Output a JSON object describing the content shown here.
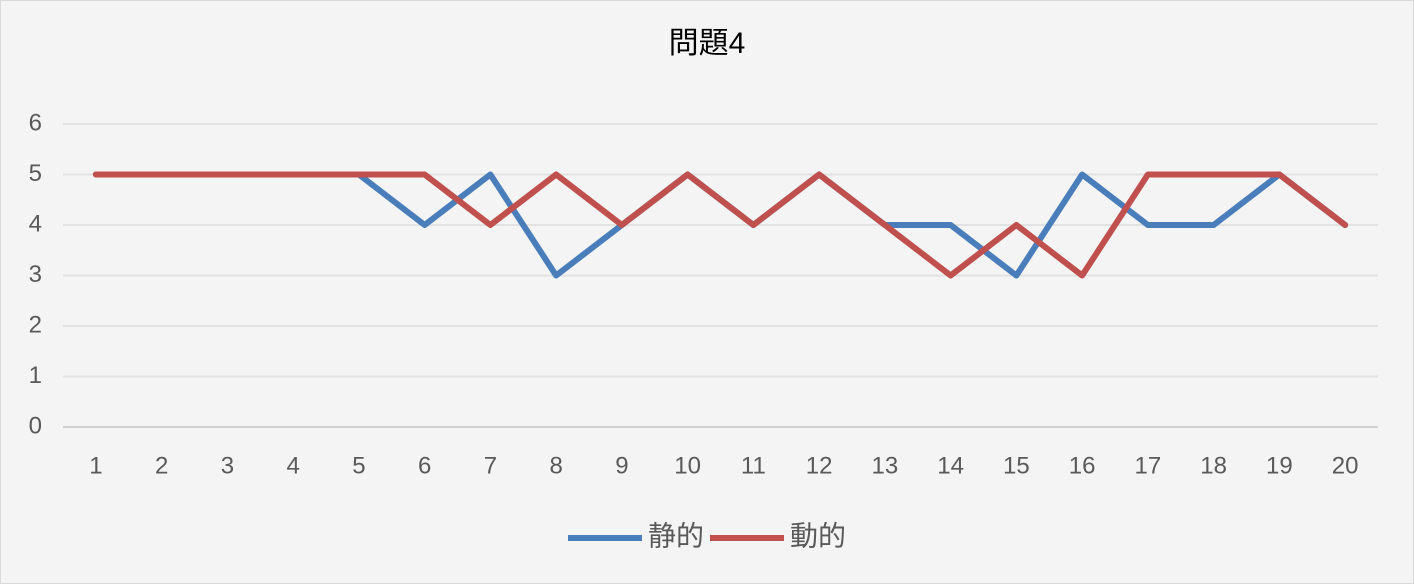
{
  "chart_data": {
    "type": "line",
    "title": "問題4",
    "categories": [
      "1",
      "2",
      "3",
      "4",
      "5",
      "6",
      "7",
      "8",
      "9",
      "10",
      "11",
      "12",
      "13",
      "14",
      "15",
      "16",
      "17",
      "18",
      "19",
      "20"
    ],
    "series": [
      {
        "name": "静的",
        "color": "#4a7ebb",
        "values": [
          5,
          5,
          5,
          5,
          5,
          4,
          5,
          3,
          4,
          5,
          4,
          5,
          4,
          4,
          3,
          5,
          4,
          4,
          5,
          4
        ]
      },
      {
        "name": "動的",
        "color": "#c0504d",
        "values": [
          5,
          5,
          5,
          5,
          5,
          5,
          4,
          5,
          4,
          5,
          4,
          5,
          4,
          3,
          4,
          3,
          5,
          5,
          5,
          4
        ]
      }
    ],
    "ylim": [
      0,
      6
    ],
    "yticks": [
      0,
      1,
      2,
      3,
      4,
      5,
      6
    ],
    "grid": true,
    "legend": "bottom"
  }
}
